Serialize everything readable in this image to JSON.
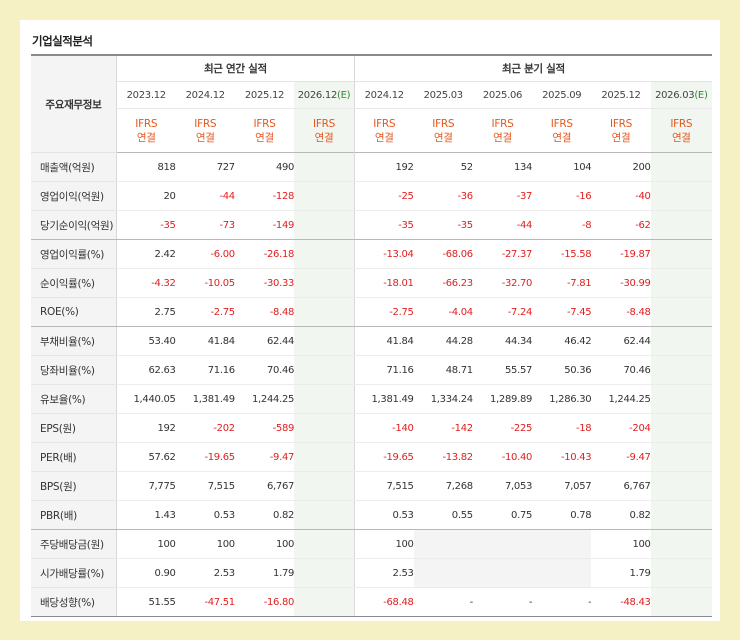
{
  "title": "기업실적분석",
  "header": {
    "row_label": "주요재무정보",
    "annual_group": "최근 연간 실적",
    "quarter_group": "최근 분기 실적",
    "annual_periods": [
      "2023.12",
      "2024.12",
      "2025.12",
      "2026.12"
    ],
    "annual_est_mark": "(E)",
    "quarter_periods": [
      "2024.12",
      "2025.03",
      "2025.06",
      "2025.09",
      "2025.12",
      "2026.03"
    ],
    "quarter_est_mark": "(E)",
    "standard": "IFRS",
    "basis": "연결"
  },
  "rows": [
    {
      "label": "매출액(억원)",
      "annual": [
        "818",
        "727",
        "490",
        ""
      ],
      "quarter": [
        "192",
        "52",
        "134",
        "104",
        "200",
        ""
      ]
    },
    {
      "label": "영업이익(억원)",
      "annual": [
        "20",
        "-44",
        "-128",
        ""
      ],
      "quarter": [
        "-25",
        "-36",
        "-37",
        "-16",
        "-40",
        ""
      ]
    },
    {
      "label": "당기순이익(억원)",
      "annual": [
        "-35",
        "-73",
        "-149",
        ""
      ],
      "quarter": [
        "-35",
        "-35",
        "-44",
        "-8",
        "-62",
        ""
      ]
    },
    {
      "label": "영업이익률(%)",
      "annual": [
        "2.42",
        "-6.00",
        "-26.18",
        ""
      ],
      "quarter": [
        "-13.04",
        "-68.06",
        "-27.37",
        "-15.58",
        "-19.87",
        ""
      ]
    },
    {
      "label": "순이익률(%)",
      "annual": [
        "-4.32",
        "-10.05",
        "-30.33",
        ""
      ],
      "quarter": [
        "-18.01",
        "-66.23",
        "-32.70",
        "-7.81",
        "-30.99",
        ""
      ]
    },
    {
      "label": "ROE(%)",
      "annual": [
        "2.75",
        "-2.75",
        "-8.48",
        ""
      ],
      "quarter": [
        "-2.75",
        "-4.04",
        "-7.24",
        "-7.45",
        "-8.48",
        ""
      ]
    },
    {
      "label": "부채비율(%)",
      "annual": [
        "53.40",
        "41.84",
        "62.44",
        ""
      ],
      "quarter": [
        "41.84",
        "44.28",
        "44.34",
        "46.42",
        "62.44",
        ""
      ]
    },
    {
      "label": "당좌비율(%)",
      "annual": [
        "62.63",
        "71.16",
        "70.46",
        ""
      ],
      "quarter": [
        "71.16",
        "48.71",
        "55.57",
        "50.36",
        "70.46",
        ""
      ]
    },
    {
      "label": "유보율(%)",
      "annual": [
        "1,440.05",
        "1,381.49",
        "1,244.25",
        ""
      ],
      "quarter": [
        "1,381.49",
        "1,334.24",
        "1,289.89",
        "1,286.30",
        "1,244.25",
        ""
      ]
    },
    {
      "label": "EPS(원)",
      "annual": [
        "192",
        "-202",
        "-589",
        ""
      ],
      "quarter": [
        "-140",
        "-142",
        "-225",
        "-18",
        "-204",
        ""
      ]
    },
    {
      "label": "PER(배)",
      "annual": [
        "57.62",
        "-19.65",
        "-9.47",
        ""
      ],
      "quarter": [
        "-19.65",
        "-13.82",
        "-10.40",
        "-10.43",
        "-9.47",
        ""
      ]
    },
    {
      "label": "BPS(원)",
      "annual": [
        "7,775",
        "7,515",
        "6,767",
        ""
      ],
      "quarter": [
        "7,515",
        "7,268",
        "7,053",
        "7,057",
        "6,767",
        ""
      ]
    },
    {
      "label": "PBR(배)",
      "annual": [
        "1.43",
        "0.53",
        "0.82",
        ""
      ],
      "quarter": [
        "0.53",
        "0.55",
        "0.75",
        "0.78",
        "0.82",
        ""
      ]
    },
    {
      "label": "주당배당금(원)",
      "annual": [
        "100",
        "100",
        "100",
        ""
      ],
      "quarter": [
        "100",
        "",
        "",
        "",
        "100",
        ""
      ]
    },
    {
      "label": "시가배당률(%)",
      "annual": [
        "0.90",
        "2.53",
        "1.79",
        ""
      ],
      "quarter": [
        "2.53",
        "",
        "",
        "",
        "1.79",
        ""
      ]
    },
    {
      "label": "배당성향(%)",
      "annual": [
        "51.55",
        "-47.51",
        "-16.80",
        ""
      ],
      "quarter": [
        "-68.48",
        "-",
        "-",
        "-",
        "-48.43",
        ""
      ]
    }
  ]
}
